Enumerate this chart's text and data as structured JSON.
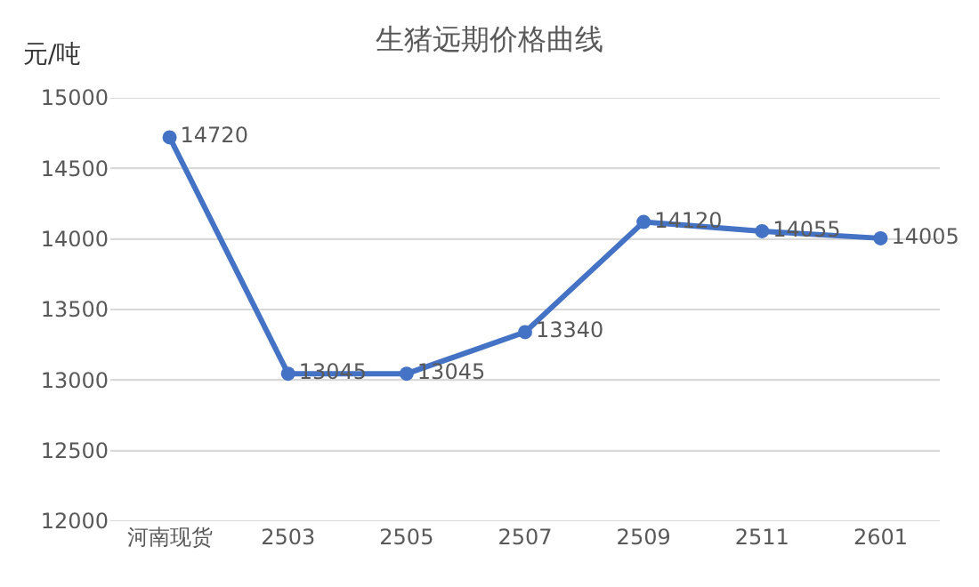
{
  "chart_data": {
    "type": "line",
    "title": "生猪远期价格曲线",
    "ylabel": "元/吨",
    "categories": [
      "河南现货",
      "2503",
      "2505",
      "2507",
      "2509",
      "2511",
      "2601"
    ],
    "series": [
      {
        "color": "#4472c4",
        "values": [
          14720,
          13045,
          13045,
          13340,
          14120,
          14055,
          14005
        ]
      }
    ],
    "ylim": [
      12000,
      15000
    ],
    "yticks": [
      12000,
      12500,
      13000,
      13500,
      14000,
      14500,
      15000
    ],
    "grid": "y",
    "marker": "circle",
    "line_style": "solid",
    "data_labels": true
  }
}
